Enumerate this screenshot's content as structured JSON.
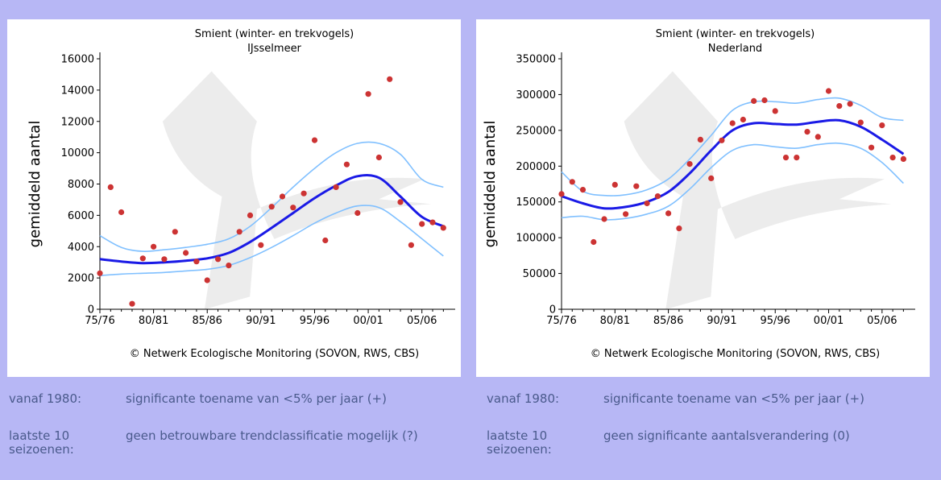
{
  "charts": [
    {
      "footer": "© Netwerk Ecologische Monitoring (SOVON, RWS, CBS)",
      "info": [
        {
          "label": "vanaf 1980:",
          "text": "significante toename van <5% per jaar (+)"
        },
        {
          "label": "laatste 10 seizoenen:",
          "text": "geen betrouwbare trendclassificatie mogelijk (?)"
        }
      ]
    },
    {
      "footer": "© Netwerk Ecologische Monitoring (SOVON, RWS, CBS)",
      "info": [
        {
          "label": "vanaf 1980:",
          "text": "significante toename van <5% per jaar (+)"
        },
        {
          "label": "laatste 10 seizoenen:",
          "text": "geen significante aantalsverandering (0)"
        }
      ]
    }
  ],
  "colors": {
    "points": "#cc3333",
    "trend": "#1a1ae6",
    "ci": "#80c0ff",
    "watermark": "#ececec"
  },
  "chart_data": [
    {
      "type": "scatter",
      "title": "Smient (winter- en trekvogels)",
      "subtitle": "IJsselmeer",
      "xlabel": "",
      "ylabel": "gemiddeld aantal",
      "xlim": [
        "75/76",
        "07/08"
      ],
      "ylim": [
        0,
        16000
      ],
      "yticks": [
        0,
        2000,
        4000,
        6000,
        8000,
        10000,
        12000,
        14000,
        16000
      ],
      "xticks": [
        "75/76",
        "80/81",
        "85/86",
        "90/91",
        "95/96",
        "00/01",
        "05/06"
      ],
      "series": [
        {
          "kind": "points",
          "x": [
            1975,
            1976,
            1977,
            1978,
            1979,
            1980,
            1981,
            1982,
            1983,
            1984,
            1985,
            1986,
            1987,
            1988,
            1989,
            1990,
            1991,
            1992,
            1993,
            1994,
            1995,
            1996,
            1997,
            1998,
            1999,
            2000,
            2001,
            2002,
            2003,
            2004,
            2005,
            2006,
            2007
          ],
          "y": [
            2300,
            7800,
            6200,
            350,
            3250,
            4000,
            3200,
            4950,
            3600,
            3050,
            1850,
            3200,
            2800,
            4950,
            6000,
            4100,
            6550,
            7200,
            6500,
            7400,
            10800,
            4400,
            7800,
            9250,
            6150,
            13750,
            9700,
            14700,
            6850,
            4100,
            5450,
            5550,
            5200
          ]
        },
        {
          "kind": "trend",
          "x": [
            1975,
            1977,
            1979,
            1981,
            1983,
            1985,
            1987,
            1989,
            1991,
            1993,
            1995,
            1997,
            1999,
            2001,
            2003,
            2005,
            2007
          ],
          "y": [
            3200,
            3050,
            2950,
            3000,
            3100,
            3250,
            3600,
            4300,
            5200,
            6150,
            7100,
            7900,
            8500,
            8400,
            7200,
            5900,
            5300
          ]
        },
        {
          "kind": "ci-upper",
          "x": [
            1975,
            1977,
            1979,
            1981,
            1983,
            1985,
            1987,
            1989,
            1991,
            1993,
            1995,
            1997,
            1999,
            2001,
            2003,
            2005,
            2007
          ],
          "y": [
            4700,
            3950,
            3700,
            3800,
            3950,
            4150,
            4500,
            5300,
            6500,
            7800,
            9000,
            10000,
            10600,
            10600,
            9900,
            8300,
            7800
          ]
        },
        {
          "kind": "ci-lower",
          "x": [
            1975,
            1977,
            1979,
            1981,
            1983,
            1985,
            1987,
            1989,
            1991,
            1993,
            1995,
            1997,
            1999,
            2001,
            2003,
            2005,
            2007
          ],
          "y": [
            2150,
            2250,
            2300,
            2350,
            2450,
            2550,
            2800,
            3300,
            3950,
            4700,
            5500,
            6150,
            6600,
            6500,
            5600,
            4500,
            3400
          ]
        }
      ]
    },
    {
      "type": "scatter",
      "title": "Smient (winter- en trekvogels)",
      "subtitle": "Nederland",
      "xlabel": "",
      "ylabel": "gemiddeld aantal",
      "xlim": [
        "75/76",
        "07/08"
      ],
      "ylim": [
        0,
        350000
      ],
      "yticks": [
        0,
        50000,
        100000,
        150000,
        200000,
        250000,
        300000,
        350000
      ],
      "xticks": [
        "75/76",
        "80/81",
        "85/86",
        "90/91",
        "95/96",
        "00/01",
        "05/06"
      ],
      "series": [
        {
          "kind": "points",
          "x": [
            1975,
            1976,
            1977,
            1978,
            1979,
            1980,
            1981,
            1982,
            1983,
            1984,
            1985,
            1986,
            1987,
            1988,
            1989,
            1990,
            1991,
            1992,
            1993,
            1994,
            1995,
            1996,
            1997,
            1998,
            1999,
            2000,
            2001,
            2002,
            2003,
            2004,
            2005,
            2006,
            2007
          ],
          "y": [
            161000,
            178000,
            167000,
            94000,
            126000,
            174000,
            133000,
            172000,
            148000,
            158000,
            134000,
            113000,
            203000,
            237000,
            183000,
            236000,
            260000,
            265000,
            291000,
            292000,
            277000,
            212000,
            212000,
            248000,
            241000,
            305000,
            284000,
            287000,
            261000,
            226000,
            257000,
            212000,
            210000
          ]
        },
        {
          "kind": "trend",
          "x": [
            1975,
            1977,
            1979,
            1981,
            1983,
            1985,
            1987,
            1989,
            1991,
            1993,
            1995,
            1997,
            1999,
            2001,
            2003,
            2005,
            2007
          ],
          "y": [
            158000,
            148000,
            141000,
            143000,
            150000,
            164000,
            190000,
            222000,
            250000,
            260000,
            259000,
            258000,
            262000,
            264000,
            255000,
            237000,
            217000
          ]
        },
        {
          "kind": "ci-upper",
          "x": [
            1975,
            1977,
            1979,
            1981,
            1983,
            1985,
            1987,
            1989,
            1991,
            1993,
            1995,
            1997,
            1999,
            2001,
            2003,
            2005,
            2007
          ],
          "y": [
            192000,
            165000,
            159000,
            160000,
            167000,
            182000,
            210000,
            243000,
            278000,
            290000,
            290000,
            288000,
            293000,
            295000,
            285000,
            268000,
            264000
          ]
        },
        {
          "kind": "ci-lower",
          "x": [
            1975,
            1977,
            1979,
            1981,
            1983,
            1985,
            1987,
            1989,
            1991,
            1993,
            1995,
            1997,
            1999,
            2001,
            2003,
            2005,
            2007
          ],
          "y": [
            128000,
            130000,
            125000,
            127000,
            133000,
            144000,
            168000,
            198000,
            222000,
            230000,
            227000,
            225000,
            230000,
            232000,
            225000,
            205000,
            176000
          ]
        }
      ]
    }
  ]
}
